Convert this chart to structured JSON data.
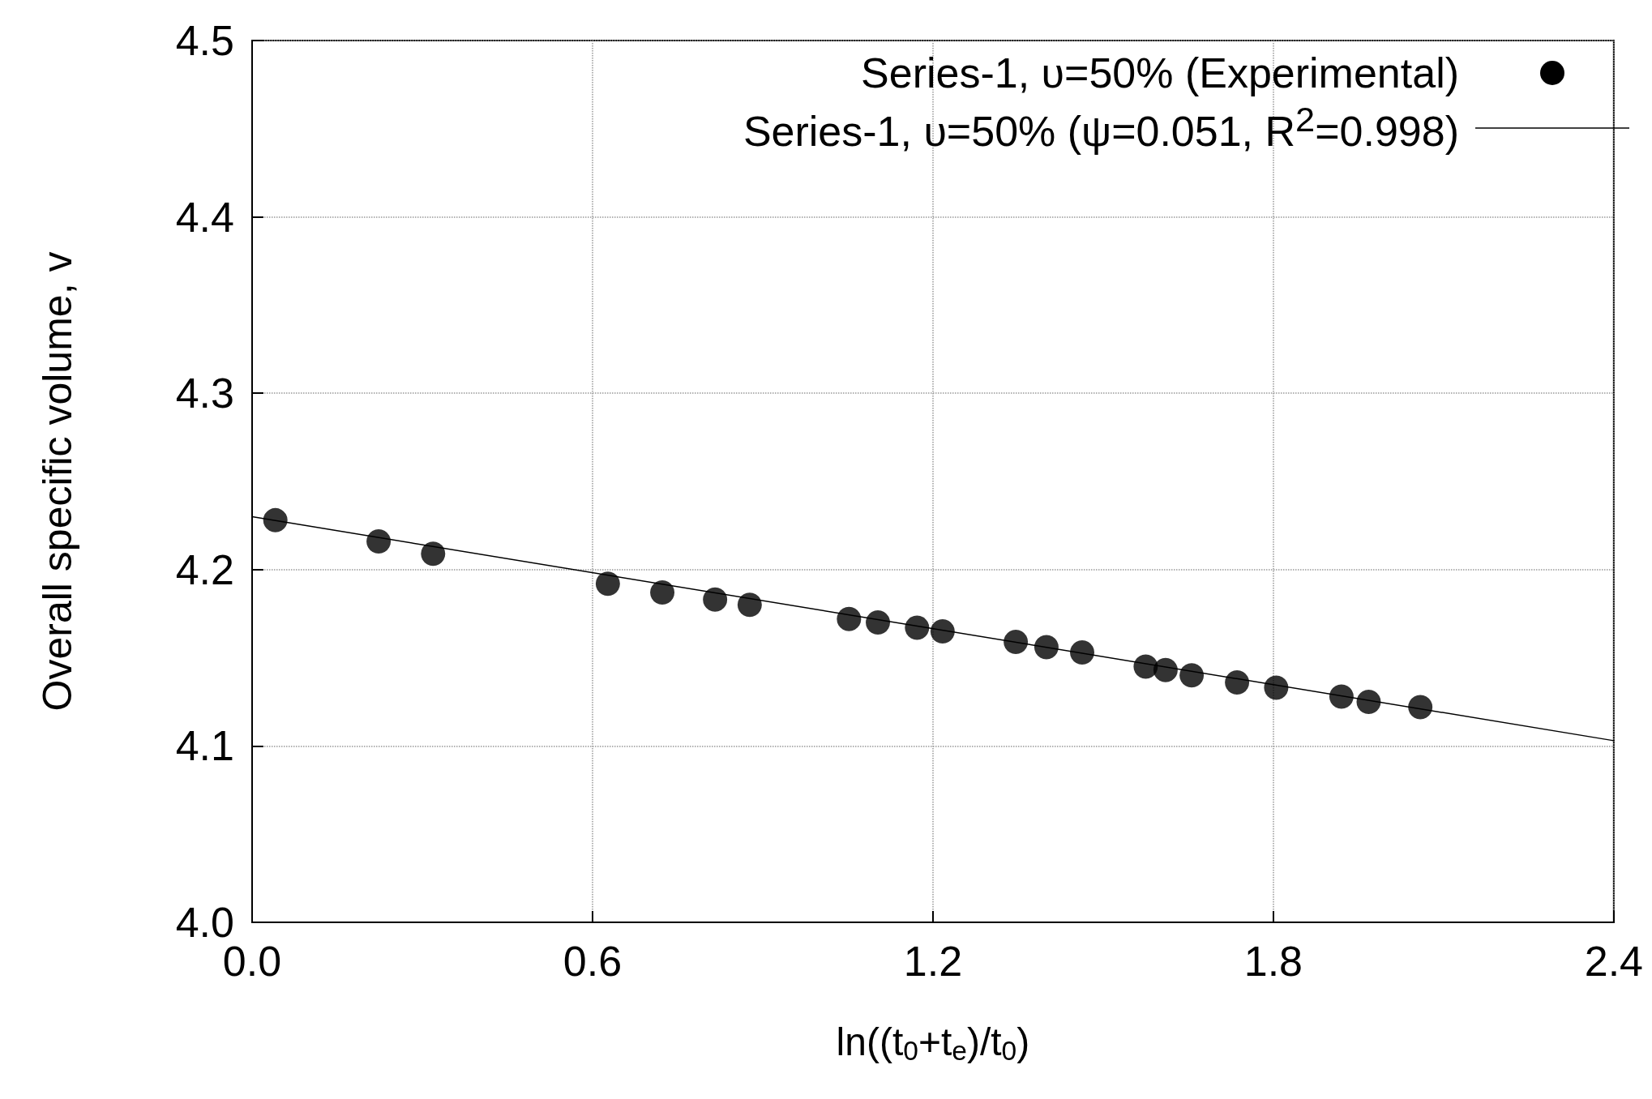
{
  "chart_data": {
    "type": "scatter",
    "xlabel": "ln((t$_{0}$+t$_{e}$)/t$_{0}$)",
    "ylabel": "Overall specific volume, v",
    "xlim": [
      0,
      2.4
    ],
    "xticks": [
      {
        "value": 0,
        "label": "0.0"
      },
      0.6,
      1.2,
      1.8,
      2.4
    ],
    "ylim": [
      4.0,
      4.5
    ],
    "yticks": [
      {
        "value": 4.0,
        "label": "4.0"
      },
      4.1,
      4.2,
      4.3,
      4.4,
      4.5
    ],
    "grid": true,
    "legend": "top right",
    "series": [
      {
        "name": "Series-1, υ=50% (Experimental)",
        "type": "scatter",
        "marker": "circle",
        "color": "#000000",
        "x": [
          0.041,
          0.223,
          0.319,
          0.627,
          0.723,
          0.816,
          0.877,
          1.052,
          1.103,
          1.172,
          1.217,
          1.346,
          1.4,
          1.463,
          1.575,
          1.61,
          1.656,
          1.736,
          1.805,
          1.92,
          1.968,
          2.059
        ],
        "values": [
          4.228,
          4.216,
          4.209,
          4.192,
          4.187,
          4.183,
          4.18,
          4.172,
          4.17,
          4.167,
          4.165,
          4.159,
          4.156,
          4.153,
          4.145,
          4.143,
          4.14,
          4.136,
          4.133,
          4.128,
          4.125,
          4.122
        ]
      },
      {
        "name": "Series-1, υ=50% (ψ=0.051, R$^{2}$=0.998)",
        "type": "line",
        "marker": "none",
        "line_style": "solid",
        "color": "#000000",
        "x": [
          0,
          2.4
        ],
        "values": [
          4.23,
          4.103
        ]
      }
    ]
  }
}
